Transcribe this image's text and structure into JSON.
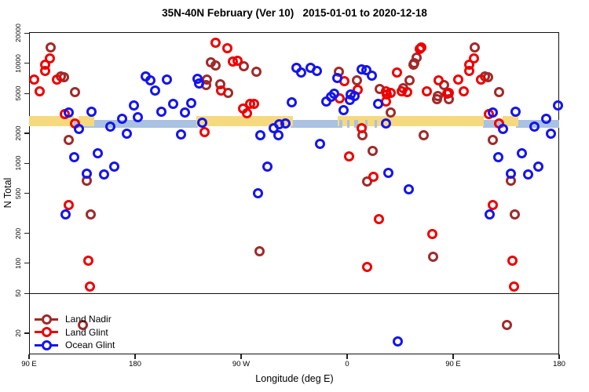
{
  "title": "35N-40N February (Ver 10)   2015-01-01 to 2020-12-18",
  "chart_data": {
    "type": "scatter",
    "title": "35N-40N February (Ver 10)   2015-01-01 to 2020-12-18",
    "x_axis": {
      "label": "Longitude (deg E)",
      "span_deg": 450,
      "ticks": [
        {
          "deg": 0,
          "label": "90 E"
        },
        {
          "deg": 90,
          "label": "180"
        },
        {
          "deg": 180,
          "label": "90 W"
        },
        {
          "deg": 270,
          "label": "0"
        },
        {
          "deg": 360,
          "label": "90 E"
        },
        {
          "deg": 450,
          "label": "180"
        }
      ]
    },
    "y_axis": {
      "label": "N Total",
      "scale": "log",
      "top_value": 20500,
      "bottom_value": 12.3,
      "ticks": [
        20000,
        10000,
        5000,
        2000,
        1000,
        500,
        200,
        100,
        50,
        20
      ]
    },
    "reference_line_value": 50,
    "wrap_repeat_below_deg": 90,
    "grid": false,
    "legend_position": "bottom-left",
    "bands": [
      {
        "name": "ocean-expected-band",
        "color": "#A9C2E2",
        "value_top": 2715,
        "value_bottom": 2265,
        "segments_deg": [
          [
            36,
            143
          ],
          [
            222,
            263
          ],
          [
            385,
            403
          ],
          [
            413,
            450
          ]
        ]
      },
      {
        "name": "land-expected-band",
        "color": "#F6D97F",
        "value_top": 2970,
        "value_bottom": 2345,
        "segments_deg": [
          [
            0,
            38
          ],
          [
            42,
            55
          ],
          [
            142,
            224
          ],
          [
            262,
            386
          ],
          [
            402,
            415
          ]
        ]
      },
      {
        "name": "ocean-speckle-band",
        "color": "#A9C2E2",
        "value_top": 2715,
        "value_bottom": 2265,
        "segments_deg": [
          [
            263,
            266
          ],
          [
            270,
            272
          ],
          [
            276,
            279
          ],
          [
            285,
            287
          ],
          [
            293,
            295
          ]
        ]
      }
    ],
    "series": [
      {
        "name": "Land Nadir",
        "color": "#A02A2A",
        "points": [
          [
            18.2,
            14300
          ],
          [
            26.9,
            7400
          ],
          [
            29.5,
            7300
          ],
          [
            38.7,
            5160
          ],
          [
            33.8,
            1720
          ],
          [
            49.3,
            667
          ],
          [
            52.2,
            308
          ],
          [
            45.5,
            24.4
          ],
          [
            154,
            10200
          ],
          [
            158,
            9500
          ],
          [
            182,
            9400
          ],
          [
            193.3,
            8300
          ],
          [
            150.7,
            6900
          ],
          [
            150,
            6100
          ],
          [
            162,
            6200
          ],
          [
            169.1,
            5100
          ],
          [
            195.5,
            131
          ],
          [
            262.7,
            8200
          ],
          [
            278.2,
            6700
          ],
          [
            297.5,
            5500
          ],
          [
            307.1,
            3250
          ],
          [
            317.5,
            5600
          ],
          [
            323.1,
            6700
          ],
          [
            329.3,
            11300
          ],
          [
            327.1,
            10000
          ],
          [
            326.5,
            9700
          ],
          [
            352.5,
            6100
          ],
          [
            347.1,
            4700
          ],
          [
            346,
            4400
          ],
          [
            356.5,
            4400
          ],
          [
            283.1,
            1900
          ],
          [
            291.5,
            1320
          ],
          [
            335.3,
            1900
          ],
          [
            287.1,
            655
          ],
          [
            342.9,
            117
          ]
        ]
      },
      {
        "name": "Land Glint",
        "color": "#EE0000",
        "points": [
          [
            17.5,
            11100
          ],
          [
            13.8,
            9650
          ],
          [
            13.5,
            8350
          ],
          [
            4.2,
            6850
          ],
          [
            23.5,
            6900
          ],
          [
            9.3,
            5290
          ],
          [
            30.5,
            3130
          ],
          [
            38.7,
            2510
          ],
          [
            33.8,
            382
          ],
          [
            50,
            106
          ],
          [
            51.8,
            59
          ],
          [
            158.2,
            16200
          ],
          [
            168,
            14200
          ],
          [
            172.7,
            10400
          ],
          [
            176.7,
            10600
          ],
          [
            163.3,
            5300
          ],
          [
            181.5,
            3550
          ],
          [
            184.9,
            3150
          ],
          [
            187.5,
            3900
          ],
          [
            190.9,
            3950
          ],
          [
            149.3,
            2060
          ],
          [
            267.5,
            6600
          ],
          [
            278.7,
            5400
          ],
          [
            263.5,
            4500
          ],
          [
            302.7,
            5200
          ],
          [
            303.5,
            4870
          ],
          [
            307.1,
            5100
          ],
          [
            303.1,
            4150
          ],
          [
            312,
            8100
          ],
          [
            316.5,
            5200
          ],
          [
            321.3,
            5150
          ],
          [
            331.5,
            14000
          ],
          [
            333.1,
            14500
          ],
          [
            337.5,
            5250
          ],
          [
            347.5,
            6700
          ],
          [
            356.5,
            5100
          ],
          [
            354.7,
            5000
          ],
          [
            282,
            2230
          ],
          [
            271.5,
            1170
          ],
          [
            292,
            740
          ],
          [
            297.3,
            278
          ],
          [
            342.2,
            197
          ],
          [
            287.1,
            92
          ]
        ]
      },
      {
        "name": "Ocean Glint",
        "color": "#1414EE",
        "points": [
          [
            33.8,
            3200
          ],
          [
            52.7,
            3300
          ],
          [
            42.2,
            2190
          ],
          [
            38.2,
            1150
          ],
          [
            58.2,
            1250
          ],
          [
            48.7,
            786
          ],
          [
            63.8,
            775
          ],
          [
            72.5,
            925
          ],
          [
            30.7,
            310
          ],
          [
            88.7,
            3760
          ],
          [
            78.7,
            2800
          ],
          [
            82.7,
            1970
          ],
          [
            68.7,
            2320
          ],
          [
            98.7,
            7400
          ],
          [
            102.7,
            6700
          ],
          [
            107.1,
            5300
          ],
          [
            112,
            3280
          ],
          [
            117.1,
            6850
          ],
          [
            122,
            3900
          ],
          [
            137.5,
            4000
          ],
          [
            132.5,
            3250
          ],
          [
            147.1,
            2550
          ],
          [
            128.7,
            1950
          ],
          [
            142.7,
            7000
          ],
          [
            144.2,
            6300
          ],
          [
            92,
            2900
          ],
          [
            207.5,
            2250
          ],
          [
            212,
            2480
          ],
          [
            217.5,
            2520
          ],
          [
            196.5,
            1900
          ],
          [
            211.5,
            1900
          ],
          [
            223.1,
            4100
          ],
          [
            227.1,
            9000
          ],
          [
            230.9,
            8150
          ],
          [
            202,
            920
          ],
          [
            194.2,
            505
          ],
          [
            238.7,
            9050
          ],
          [
            244.2,
            8400
          ],
          [
            261.5,
            7100
          ],
          [
            282,
            8700
          ],
          [
            286.5,
            8500
          ],
          [
            291.3,
            7500
          ],
          [
            273.1,
            4900
          ],
          [
            276.5,
            4700
          ],
          [
            258.7,
            5000
          ],
          [
            252.5,
            4160
          ],
          [
            256.5,
            4650
          ],
          [
            267.1,
            3430
          ],
          [
            272,
            4270
          ],
          [
            296,
            3900
          ],
          [
            303.1,
            2500
          ],
          [
            247.1,
            1560
          ],
          [
            305.3,
            800
          ],
          [
            322,
            550
          ],
          [
            312.9,
            16.7
          ]
        ]
      }
    ]
  }
}
